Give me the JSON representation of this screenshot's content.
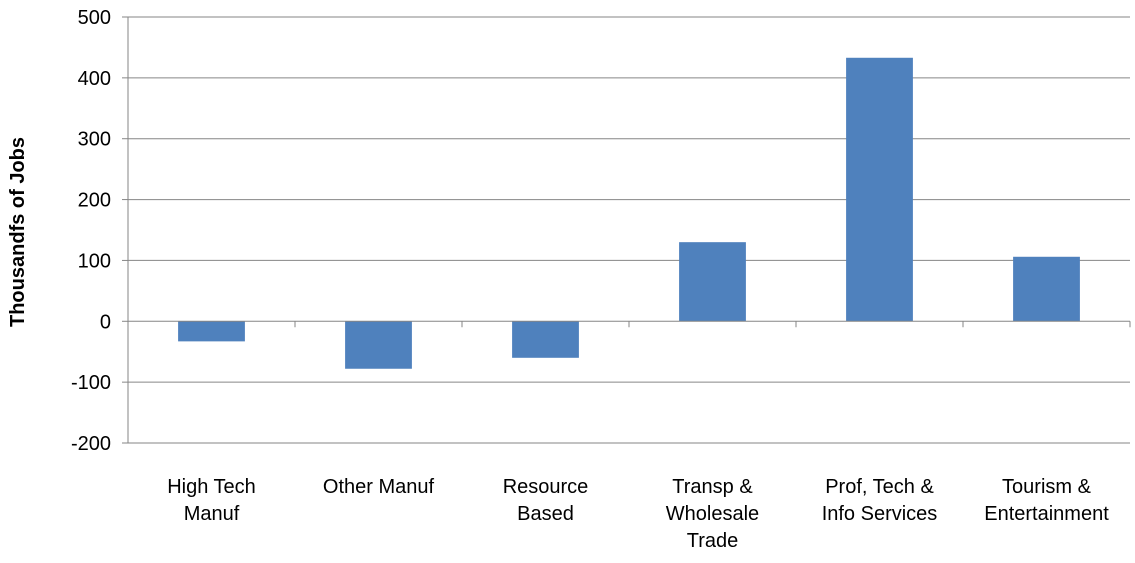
{
  "chart_data": {
    "type": "bar",
    "title": "",
    "xlabel": "",
    "ylabel": "Thousandfs of Jobs",
    "ylim": [
      -200,
      500
    ],
    "ytick_step": 100,
    "yticks": [
      "500",
      "400",
      "300",
      "200",
      "100",
      "0",
      "-100",
      "-200"
    ],
    "grid": true,
    "legend": "none",
    "bar_color": "#4f81bd",
    "categories": [
      [
        "High Tech",
        "Manuf"
      ],
      [
        "Other Manuf"
      ],
      [
        "Resource",
        "Based"
      ],
      [
        "Transp &",
        "Wholesale",
        "Trade"
      ],
      [
        "Prof, Tech &",
        "Info Services"
      ],
      [
        "Tourism &",
        "Entertainment"
      ]
    ],
    "values": [
      -33,
      -78,
      -60,
      130,
      433,
      106
    ]
  }
}
